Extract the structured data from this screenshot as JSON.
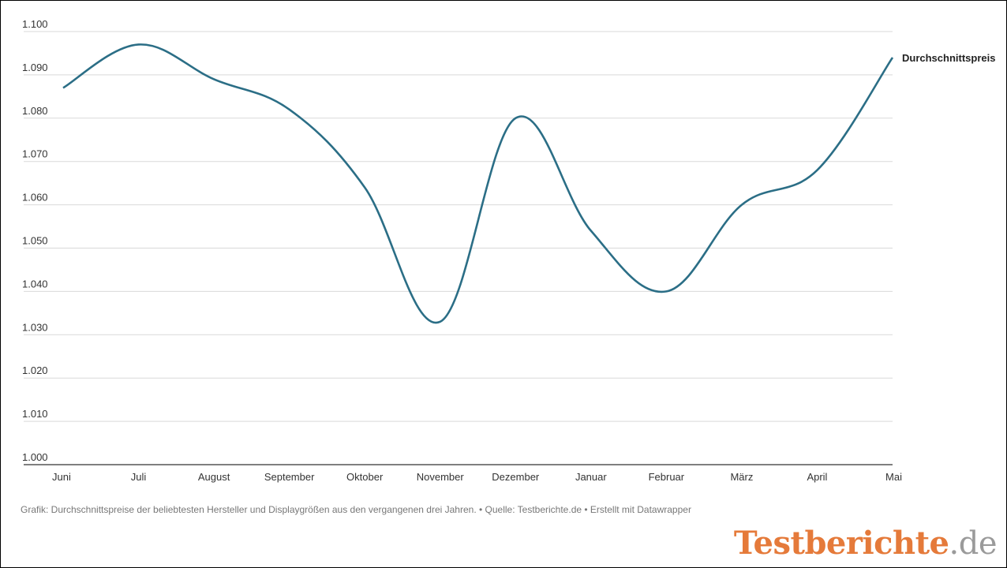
{
  "chart_data": {
    "type": "line",
    "categories": [
      "Juni",
      "Juli",
      "August",
      "September",
      "Oktober",
      "November",
      "Dezember",
      "Januar",
      "Februar",
      "März",
      "April",
      "Mai"
    ],
    "series": [
      {
        "name": "Durchschnittspreis",
        "values": [
          1087,
          1097,
          1089,
          1082,
          1064,
          1033,
          1080,
          1054,
          1040,
          1060,
          1068,
          1094
        ],
        "color": "#2b6e86"
      }
    ],
    "ylim": [
      1000,
      1100
    ],
    "yticks": [
      1000,
      1010,
      1020,
      1030,
      1040,
      1050,
      1060,
      1070,
      1080,
      1090,
      1100
    ],
    "ytick_labels": [
      "1.000",
      "1.010",
      "1.020",
      "1.030",
      "1.040",
      "1.050",
      "1.060",
      "1.070",
      "1.080",
      "1.090",
      "1.100"
    ],
    "grid": true,
    "line_style": "smooth"
  },
  "footer": {
    "caption": "Grafik: Durchschnittspreise der beliebtesten Hersteller und Displaygrößen aus den vergangenen drei Jahren. • Quelle: Testberichte.de • Erstellt mit Datawrapper"
  },
  "logo": {
    "brand": "Testberichte",
    "tld": ".de"
  },
  "colors": {
    "grid": "#d9d9d9",
    "axis": "#333333",
    "logo_brand": "#e57a3a",
    "logo_tld": "#9a9a9a"
  }
}
